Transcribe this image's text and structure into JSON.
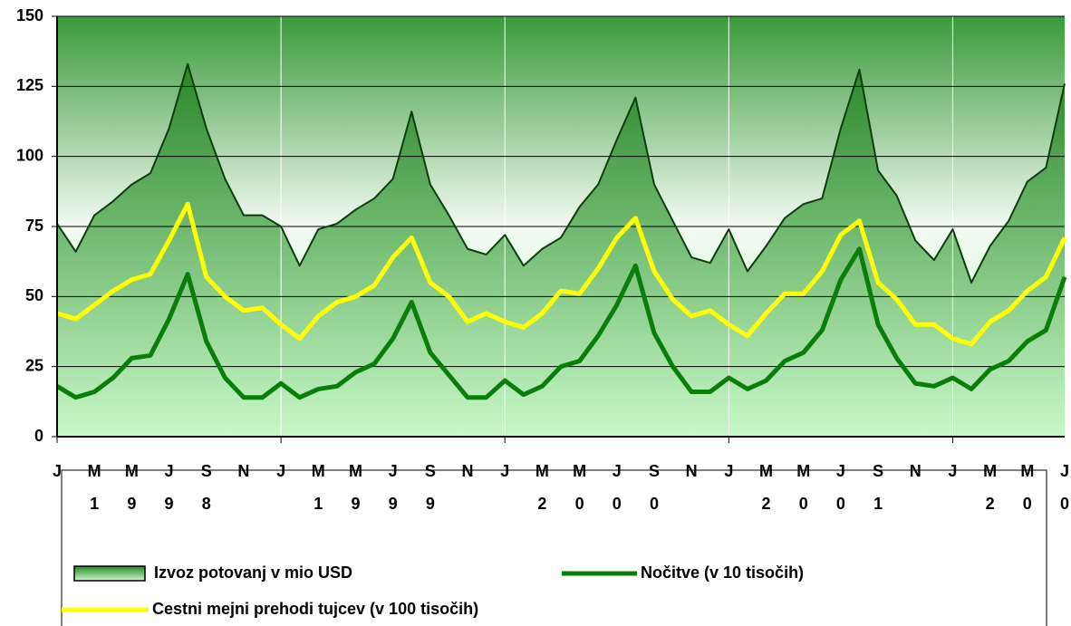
{
  "chart_data": {
    "type": "line",
    "categories": [
      "J",
      null,
      "M",
      null,
      "M",
      null,
      "J",
      null,
      "S",
      null,
      "N",
      null,
      "J",
      null,
      "M",
      null,
      "M",
      null,
      "J",
      null,
      "S",
      null,
      "N",
      null,
      "J",
      null,
      "M",
      null,
      "M",
      null,
      "J",
      null,
      "S",
      null,
      "N",
      null,
      "J",
      null,
      "M",
      null,
      "M",
      null,
      "J",
      null,
      "S",
      null,
      "N",
      null,
      "J",
      null,
      "M",
      null,
      "M",
      null,
      "J"
    ],
    "categories_row2": [
      null,
      null,
      "1",
      null,
      "9",
      null,
      "9",
      null,
      "8",
      null,
      null,
      null,
      null,
      null,
      "1",
      null,
      "9",
      null,
      "9",
      null,
      "9",
      null,
      null,
      null,
      null,
      null,
      "2",
      null,
      "0",
      null,
      "0",
      null,
      "0",
      null,
      null,
      null,
      null,
      null,
      "2",
      null,
      "0",
      null,
      "0",
      null,
      "1",
      null,
      null,
      null,
      null,
      null,
      "2",
      null,
      "0",
      null,
      "0"
    ],
    "series": [
      {
        "name": "Izvoz potovanj v mio USD",
        "kind": "area",
        "color": "#0d3d0d",
        "values": [
          76,
          66,
          79,
          84,
          90,
          94,
          110,
          133,
          110,
          92,
          79,
          79,
          75,
          61,
          74,
          76,
          81,
          85,
          92,
          116,
          90,
          79,
          67,
          65,
          72,
          61,
          67,
          71,
          82,
          90,
          106,
          121,
          90,
          77,
          64,
          62,
          74,
          59,
          68,
          78,
          83,
          85,
          110,
          131,
          95,
          86,
          70,
          63,
          74,
          55,
          68,
          77,
          91,
          96,
          126
        ]
      },
      {
        "name": "Nočitve (v 10 tisočih)",
        "kind": "line",
        "color": "#0a7d0a",
        "values": [
          18,
          14,
          16,
          21,
          28,
          29,
          42,
          58,
          34,
          21,
          14,
          14,
          19,
          14,
          17,
          18,
          23,
          26,
          35,
          48,
          30,
          22,
          14,
          14,
          20,
          15,
          18,
          25,
          27,
          36,
          47,
          61,
          37,
          25,
          16,
          16,
          21,
          17,
          20,
          27,
          30,
          38,
          56,
          67,
          40,
          28,
          19,
          18,
          21,
          17,
          24,
          27,
          34,
          38,
          57
        ]
      },
      {
        "name": "Cestni mejni prehodi tujcev (v 100 tisočih)",
        "kind": "line",
        "color": "#ffff00",
        "values": [
          44,
          42,
          47,
          52,
          56,
          58,
          70,
          83,
          57,
          50,
          45,
          46,
          40,
          35,
          43,
          48,
          50,
          54,
          64,
          71,
          55,
          50,
          41,
          44,
          41,
          39,
          44,
          52,
          51,
          60,
          71,
          78,
          59,
          49,
          43,
          45,
          40,
          36,
          44,
          51,
          51,
          59,
          72,
          77,
          55,
          49,
          40,
          40,
          35,
          33,
          41,
          45,
          52,
          57,
          71
        ]
      }
    ],
    "ylim": [
      0,
      150
    ],
    "yticks": [
      0,
      25,
      50,
      75,
      100,
      125,
      150
    ],
    "grid": true
  }
}
